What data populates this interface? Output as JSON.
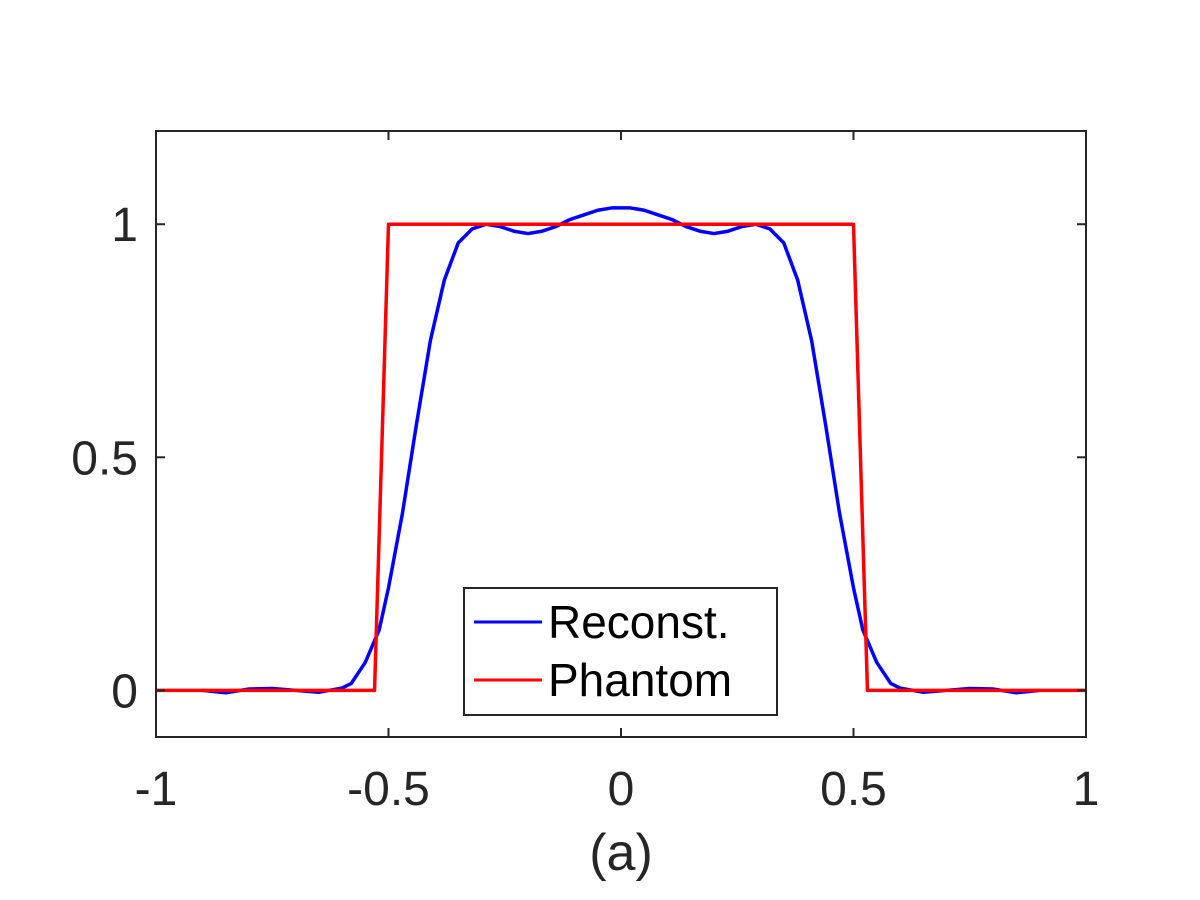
{
  "chart_data": {
    "type": "line",
    "title": "",
    "xlabel": "(a)",
    "ylabel": "",
    "xlim": [
      -1,
      1
    ],
    "ylim": [
      -0.1,
      1.2
    ],
    "x_ticks": [
      -1,
      -0.5,
      0,
      0.5,
      1
    ],
    "x_tick_labels": [
      "-1",
      "-0.5",
      "0",
      "0.5",
      "1"
    ],
    "y_ticks": [
      0,
      0.5,
      1
    ],
    "y_tick_labels": [
      "0",
      "0.5",
      "1"
    ],
    "grid": false,
    "legend_position": "bottom-center",
    "series": [
      {
        "name": "Reconst.",
        "color": "#0000ff",
        "x": [
          -0.9,
          -0.85,
          -0.8,
          -0.75,
          -0.7,
          -0.65,
          -0.6,
          -0.58,
          -0.55,
          -0.52,
          -0.5,
          -0.47,
          -0.44,
          -0.41,
          -0.38,
          -0.35,
          -0.32,
          -0.29,
          -0.26,
          -0.23,
          -0.2,
          -0.17,
          -0.14,
          -0.11,
          -0.08,
          -0.05,
          -0.02,
          0,
          0.02,
          0.05,
          0.08,
          0.11,
          0.14,
          0.17,
          0.2,
          0.23,
          0.26,
          0.29,
          0.32,
          0.35,
          0.38,
          0.41,
          0.44,
          0.47,
          0.5,
          0.52,
          0.55,
          0.58,
          0.6,
          0.65,
          0.7,
          0.75,
          0.8,
          0.85,
          0.9
        ],
        "y": [
          0,
          -0.005,
          0.003,
          0.004,
          0.0,
          -0.004,
          0.005,
          0.015,
          0.06,
          0.13,
          0.22,
          0.38,
          0.57,
          0.75,
          0.88,
          0.96,
          0.99,
          1.0,
          0.995,
          0.985,
          0.98,
          0.985,
          0.995,
          1.01,
          1.02,
          1.03,
          1.035,
          1.035,
          1.035,
          1.03,
          1.02,
          1.01,
          0.995,
          0.985,
          0.98,
          0.985,
          0.995,
          1.0,
          0.99,
          0.96,
          0.88,
          0.75,
          0.57,
          0.38,
          0.22,
          0.13,
          0.06,
          0.015,
          0.005,
          -0.004,
          0.0,
          0.004,
          0.003,
          -0.005,
          0
        ]
      },
      {
        "name": "Phantom",
        "color": "#ff0000",
        "x": [
          -1,
          -0.53,
          -0.5,
          0.5,
          0.53,
          1
        ],
        "y": [
          0,
          0,
          1,
          1,
          0,
          0
        ]
      }
    ]
  }
}
